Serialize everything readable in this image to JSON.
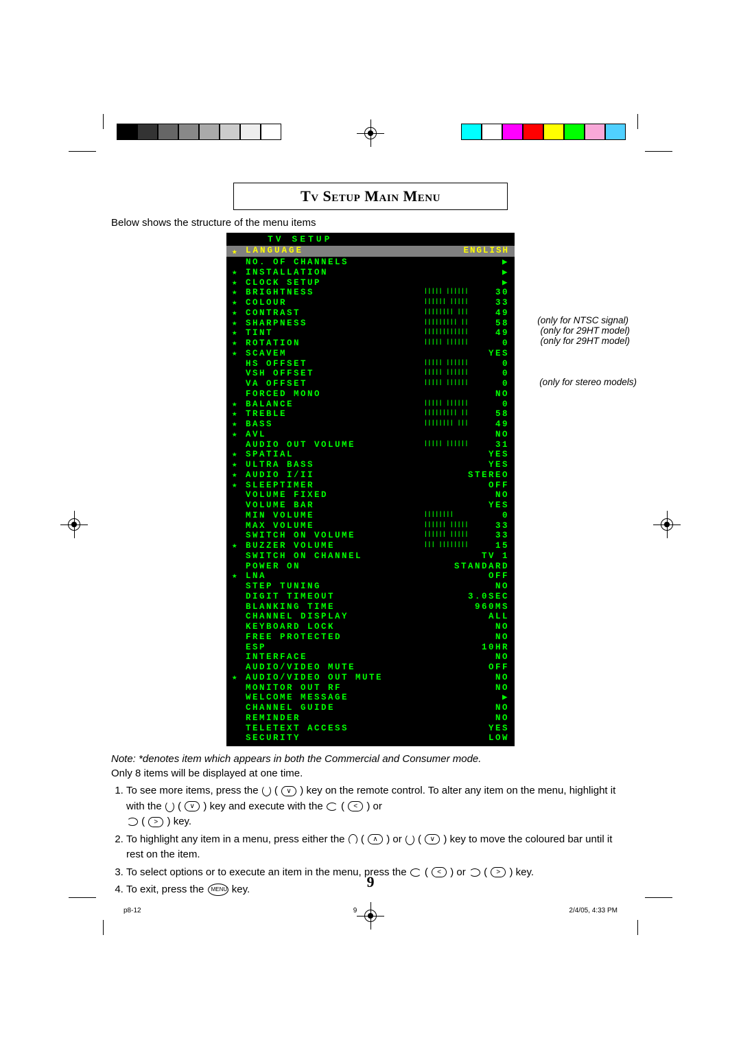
{
  "calibration": {
    "left_colors": [
      "#000000",
      "#333333",
      "#666666",
      "#888888",
      "#aaaaaa",
      "#cccccc",
      "#eeeeee",
      "#ffffff"
    ],
    "right_colors": [
      "#00ffff",
      "#ffffff",
      "#ff00ff",
      "#ff0000",
      "#ffff00",
      "#00ff00",
      "#f8a8d8",
      "#50d0ff"
    ]
  },
  "title": "Tv Setup Main Menu",
  "intro": "Below shows the structure of the menu items",
  "menu": {
    "header": "TV  SETUP",
    "highlight": {
      "star": "★",
      "label": "LANGUAGE",
      "value": "ENGLISH"
    },
    "rows": [
      {
        "s": "",
        "l": "NO. OF CHANNELS",
        "b": "",
        "v": "▶"
      },
      {
        "s": "★",
        "l": "INSTALLATION",
        "b": "",
        "v": "▶"
      },
      {
        "s": "★",
        "l": "CLOCK SETUP",
        "b": "",
        "v": "▶"
      },
      {
        "s": "★",
        "l": "BRIGHTNESS",
        "b": "||||| |||||| ",
        "v": "30"
      },
      {
        "s": "★",
        "l": "COLOUR",
        "b": "|||||| ||||| ",
        "v": "33"
      },
      {
        "s": "★",
        "l": "CONTRAST",
        "b": "|||||||| ||| ",
        "v": "49"
      },
      {
        "s": "★",
        "l": "SHARPNESS",
        "b": "||||||||| || ",
        "v": "58"
      },
      {
        "s": "★",
        "l": "TINT",
        "b": "|||||||||||| ",
        "v": "49",
        "note": "(only for NTSC signal)"
      },
      {
        "s": "★",
        "l": "ROTATION",
        "b": "||||| |||||| ",
        "v": "0",
        "note": "(only for 29HT model)"
      },
      {
        "s": "★",
        "l": "SCAVEM",
        "b": "",
        "v": "YES",
        "note": "(only for 29HT model)"
      },
      {
        "s": "",
        "l": "HS OFFSET",
        "b": "||||| |||||| ",
        "v": "0"
      },
      {
        "s": "",
        "l": "VSH OFFSET",
        "b": "||||| |||||| ",
        "v": "0"
      },
      {
        "s": "",
        "l": "VA OFFSET",
        "b": "||||| |||||| ",
        "v": "0"
      },
      {
        "s": "",
        "l": "FORCED MONO",
        "b": "",
        "v": "NO",
        "note": "(only for stereo models)"
      },
      {
        "s": "★",
        "l": "BALANCE",
        "b": "||||| |||||| ",
        "v": "0"
      },
      {
        "s": "★",
        "l": "TREBLE",
        "b": "||||||||| || ",
        "v": "58"
      },
      {
        "s": "★",
        "l": "BASS",
        "b": "|||||||| ||| ",
        "v": "49"
      },
      {
        "s": "★",
        "l": "AVL",
        "b": "",
        "v": "NO"
      },
      {
        "s": "",
        "l": "AUDIO OUT VOLUME",
        "b": "||||| |||||| ",
        "v": "31"
      },
      {
        "s": "★",
        "l": "SPATIAL",
        "b": "",
        "v": "YES"
      },
      {
        "s": "★",
        "l": "ULTRA BASS",
        "b": "",
        "v": "YES"
      },
      {
        "s": "★",
        "l": "AUDIO I/II",
        "b": "",
        "v": "STEREO"
      },
      {
        "s": "★",
        "l": "SLEEPTIMER",
        "b": "",
        "v": "OFF"
      },
      {
        "s": "",
        "l": "VOLUME FIXED",
        "b": "",
        "v": "NO"
      },
      {
        "s": "",
        "l": "VOLUME BAR",
        "b": "",
        "v": "YES"
      },
      {
        "s": "",
        "l": "MIN VOLUME",
        "b": "||||||||     ",
        "v": "0"
      },
      {
        "s": "",
        "l": "MAX VOLUME",
        "b": "|||||| ||||| ",
        "v": "33"
      },
      {
        "s": "",
        "l": "SWITCH ON VOLUME",
        "b": "|||||| ||||| ",
        "v": "33"
      },
      {
        "s": "★",
        "l": "BUZZER VOLUME",
        "b": "||| |||||||| ",
        "v": "15"
      },
      {
        "s": "",
        "l": "SWITCH ON CHANNEL",
        "b": "",
        "v": "TV 1"
      },
      {
        "s": "",
        "l": "POWER ON",
        "b": "",
        "v": "STANDARD"
      },
      {
        "s": "★",
        "l": "LNA",
        "b": "",
        "v": "OFF"
      },
      {
        "s": "",
        "l": "STEP TUNING",
        "b": "",
        "v": "NO"
      },
      {
        "s": "",
        "l": "DIGIT TIMEOUT",
        "b": "",
        "v": "3.0SEC"
      },
      {
        "s": "",
        "l": "BLANKING TIME",
        "b": "",
        "v": "960MS"
      },
      {
        "s": "",
        "l": "CHANNEL DISPLAY",
        "b": "",
        "v": "ALL"
      },
      {
        "s": "",
        "l": "KEYBOARD LOCK",
        "b": "",
        "v": "NO"
      },
      {
        "s": "",
        "l": "FREE PROTECTED",
        "b": "",
        "v": "NO"
      },
      {
        "s": "",
        "l": "ESP",
        "b": "",
        "v": "10HR"
      },
      {
        "s": "",
        "l": "INTERFACE",
        "b": "",
        "v": "NO"
      },
      {
        "s": "",
        "l": "AUDIO/VIDEO MUTE",
        "b": "",
        "v": "OFF"
      },
      {
        "s": "★",
        "l": "AUDIO/VIDEO OUT MUTE",
        "b": "",
        "v": "NO"
      },
      {
        "s": "",
        "l": "MONITOR OUT RF",
        "b": "",
        "v": "NO"
      },
      {
        "s": "",
        "l": "WELCOME MESSAGE",
        "b": "",
        "v": "▶"
      },
      {
        "s": "",
        "l": "CHANNEL GUIDE",
        "b": "",
        "v": "NO"
      },
      {
        "s": "",
        "l": "REMINDER",
        "b": "",
        "v": "NO"
      },
      {
        "s": "",
        "l": "TELETEXT ACCESS",
        "b": "",
        "v": "YES"
      },
      {
        "s": "",
        "l": "SECURITY",
        "b": "",
        "v": "LOW"
      }
    ]
  },
  "note": "Note: *denotes item which appears in both the Commercial and Consumer mode.",
  "only8": "Only 8 items will be displayed at one time.",
  "steps": {
    "s1a": "To see more items, press the ",
    "s1b": " key on the remote control.  To alter any item on the menu, highlight it with the ",
    "s1c": "key and execute with the ",
    "s1d": " or ",
    "s1e": " key.",
    "s2a": "To highlight any item in a menu, press either the ",
    "s2b": " or ",
    "s2c": "key to move the coloured bar until it rest on the item.",
    "s3a": "To select options or to execute an item in the menu, press the ",
    "s3b": " or ",
    "s3c": "key.",
    "s4a": "To exit, press the ",
    "s4b": "MENU",
    "s4c": " key."
  },
  "page_number": "9",
  "footer": {
    "left": "p8-12",
    "mid": "9",
    "right": "2/4/05, 4:33 PM"
  }
}
